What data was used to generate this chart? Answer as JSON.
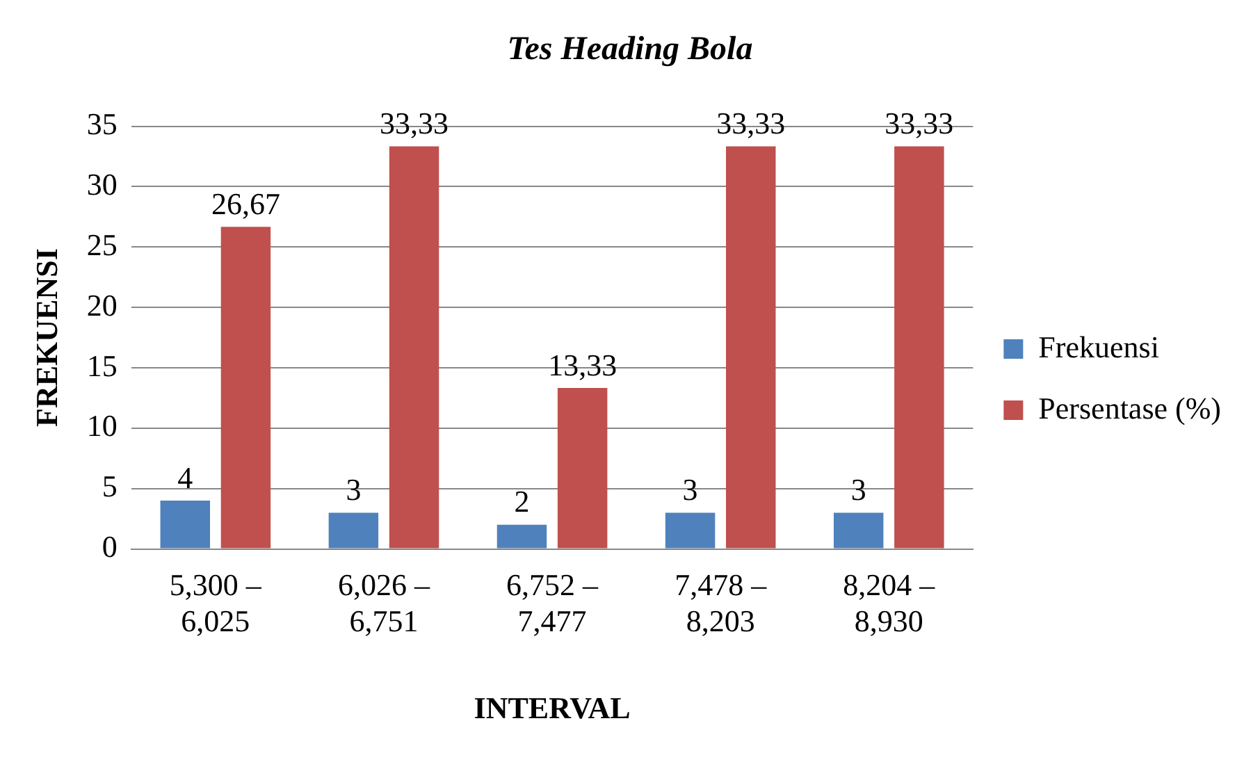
{
  "chart_data": {
    "type": "bar",
    "title": "Tes Heading Bola",
    "xlabel": "INTERVAL",
    "ylabel": "FREKUENSI",
    "categories": [
      "5,300 – 6,025",
      "6,026 – 6,751",
      "6,752 – 7,477",
      "7,478 – 8,203",
      "8,204 – 8,930"
    ],
    "series": [
      {
        "name": "Frekuensi",
        "color": "#4f81bd",
        "values": [
          4,
          3,
          2,
          3,
          3
        ],
        "value_labels": [
          "4",
          "3",
          "2",
          "3",
          "3"
        ]
      },
      {
        "name": "Persentase (%)",
        "color": "#c0504d",
        "values": [
          26.67,
          33.33,
          13.33,
          33.33,
          33.33
        ],
        "value_labels": [
          "26,67",
          "33,33",
          "13,33",
          "33,33",
          "33,33"
        ]
      }
    ],
    "ylim": [
      0,
      35
    ],
    "yticks": [
      0,
      5,
      10,
      15,
      20,
      25,
      30,
      35
    ],
    "grid": "y",
    "legend": "right"
  }
}
